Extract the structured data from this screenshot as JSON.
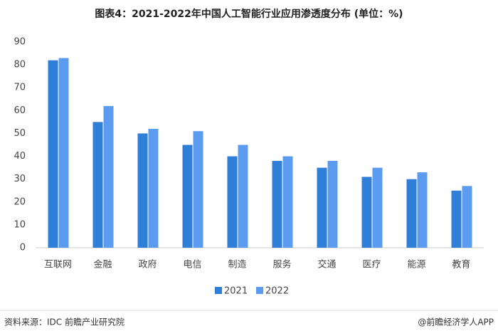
{
  "chart_data": {
    "type": "bar",
    "title": "图表4：2021-2022年中国人工智能行业应用渗透度分布 (单位：%)",
    "categories": [
      "互联网",
      "金融",
      "政府",
      "电信",
      "制造",
      "服务",
      "交通",
      "医疗",
      "能源",
      "教育"
    ],
    "series": [
      {
        "name": "2021",
        "color": "#2f7ed8",
        "values": [
          82,
          55,
          50,
          45,
          40,
          38,
          35,
          31,
          30,
          25
        ]
      },
      {
        "name": "2022",
        "color": "#5c9cf0",
        "values": [
          83,
          62,
          52,
          51,
          45,
          40,
          38,
          35,
          33,
          27
        ]
      }
    ],
    "ylim": [
      0,
      90
    ],
    "yticks": [
      0,
      10,
      20,
      30,
      40,
      50,
      60,
      70,
      80,
      90
    ],
    "grid": false,
    "legend": "bottom"
  },
  "footer": {
    "source": "资料来源：IDC 前瞻产业研究院",
    "credit": "@前瞻经济学人APP"
  }
}
